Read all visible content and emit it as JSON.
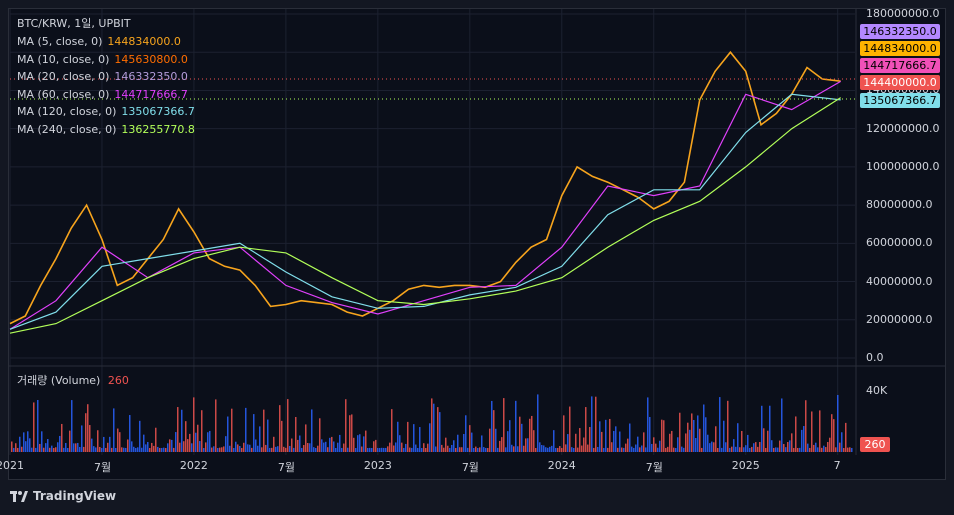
{
  "header": {
    "symbol": "BTC/KRW, 1일, UPBIT"
  },
  "indicators": [
    {
      "label": "MA (5, close, 0)",
      "value": "144834000.0",
      "color": "#f7a41d"
    },
    {
      "label": "MA (10, close, 0)",
      "value": "145630800.0",
      "color": "#ff6d00"
    },
    {
      "label": "MA (20, close, 0)",
      "value": "146332350.0",
      "color": "#b39ddb"
    },
    {
      "label": "MA (60, close, 0)",
      "value": "144717666.7",
      "color": "#e040fb"
    },
    {
      "label": "MA (120, close, 0)",
      "value": "135067366.7",
      "color": "#80deea"
    },
    {
      "label": "MA (240, close, 0)",
      "value": "136255770.8",
      "color": "#b2ff59"
    }
  ],
  "volume_panel": {
    "label": "거래량 (Volume)",
    "value": "260",
    "axis_label": "40K",
    "tag": "260"
  },
  "price_tags": [
    {
      "value": "146332350.0",
      "color": "#b388ff"
    },
    {
      "value": "144834000.0",
      "color": "#ffb300"
    },
    {
      "value": "144717666.7",
      "color": "#f050b8"
    },
    {
      "value": "144400000.0",
      "color": "#ef5350"
    },
    {
      "value": "135067366.7",
      "color": "#80deea"
    }
  ],
  "footer": {
    "brand": "TradingView"
  },
  "chart_data": {
    "type": "line",
    "title": "",
    "y_ticks": [
      "180000000.0",
      "160000000.0",
      "140000000.0",
      "120000000.0",
      "100000000.0",
      "80000000.0",
      "60000000.0",
      "40000000.0",
      "20000000.0",
      "0.0"
    ],
    "ylim": [
      0,
      180000000
    ],
    "x_ticks": [
      "2021",
      "7월",
      "2022",
      "7월",
      "2023",
      "7월",
      "2024",
      "7월",
      "2025",
      "7"
    ],
    "x_months_index": [
      0,
      6,
      12,
      18,
      24,
      30,
      36,
      42,
      48,
      54
    ],
    "xlim_months": [
      0,
      55
    ],
    "grid": true,
    "series": [
      {
        "name": "MA (5, close, 0)",
        "x": [
          0,
          1,
          2,
          3,
          4,
          5,
          6,
          7,
          8,
          9,
          10,
          11,
          12,
          13,
          14,
          15,
          16,
          17,
          18,
          19,
          20,
          21,
          22,
          23,
          24,
          25,
          26,
          27,
          28,
          29,
          30,
          31,
          32,
          33,
          34,
          35,
          36,
          37,
          38,
          39,
          40,
          41,
          42,
          43,
          44,
          45,
          46,
          47,
          48,
          49,
          50,
          51,
          52,
          53,
          54.2
        ],
        "y": [
          18000000,
          22000000,
          38000000,
          52000000,
          68000000,
          80000000,
          62000000,
          38000000,
          42000000,
          52000000,
          62000000,
          78000000,
          66000000,
          52000000,
          48000000,
          46000000,
          38000000,
          27000000,
          28000000,
          30000000,
          29000000,
          28000000,
          24000000,
          22000000,
          26000000,
          30000000,
          36000000,
          38000000,
          37000000,
          38000000,
          38000000,
          37000000,
          40000000,
          50000000,
          58000000,
          62000000,
          85000000,
          100000000,
          95000000,
          92000000,
          88000000,
          84000000,
          78000000,
          82000000,
          92000000,
          135000000,
          150000000,
          160000000,
          150000000,
          122000000,
          128000000,
          138000000,
          152000000,
          146000000,
          144834000
        ]
      },
      {
        "name": "MA (60, close, 0)",
        "x": [
          0,
          3,
          6,
          9,
          12,
          15,
          18,
          21,
          24,
          27,
          30,
          33,
          36,
          39,
          42,
          45,
          48,
          51,
          54.2
        ],
        "y": [
          15000000,
          30000000,
          58000000,
          42000000,
          55000000,
          58000000,
          38000000,
          29000000,
          23000000,
          30000000,
          37000000,
          38000000,
          58000000,
          90000000,
          85000000,
          90000000,
          138000000,
          130000000,
          144717666
        ]
      },
      {
        "name": "MA (120, close, 0)",
        "x": [
          0,
          3,
          6,
          9,
          12,
          15,
          18,
          21,
          24,
          27,
          30,
          33,
          36,
          39,
          42,
          45,
          48,
          51,
          54.2
        ],
        "y": [
          15000000,
          24000000,
          48000000,
          52000000,
          56000000,
          60000000,
          45000000,
          32000000,
          26000000,
          27000000,
          33000000,
          37000000,
          48000000,
          75000000,
          88000000,
          88000000,
          118000000,
          138000000,
          135067366
        ]
      },
      {
        "name": "MA (240, close, 0)",
        "x": [
          0,
          3,
          6,
          9,
          12,
          15,
          18,
          21,
          24,
          27,
          30,
          33,
          36,
          39,
          42,
          45,
          48,
          51,
          54.2
        ],
        "y": [
          13000000,
          18000000,
          30000000,
          42000000,
          52000000,
          58000000,
          55000000,
          42000000,
          30000000,
          28000000,
          31000000,
          35000000,
          42000000,
          58000000,
          72000000,
          82000000,
          100000000,
          120000000,
          136255770
        ]
      }
    ]
  }
}
